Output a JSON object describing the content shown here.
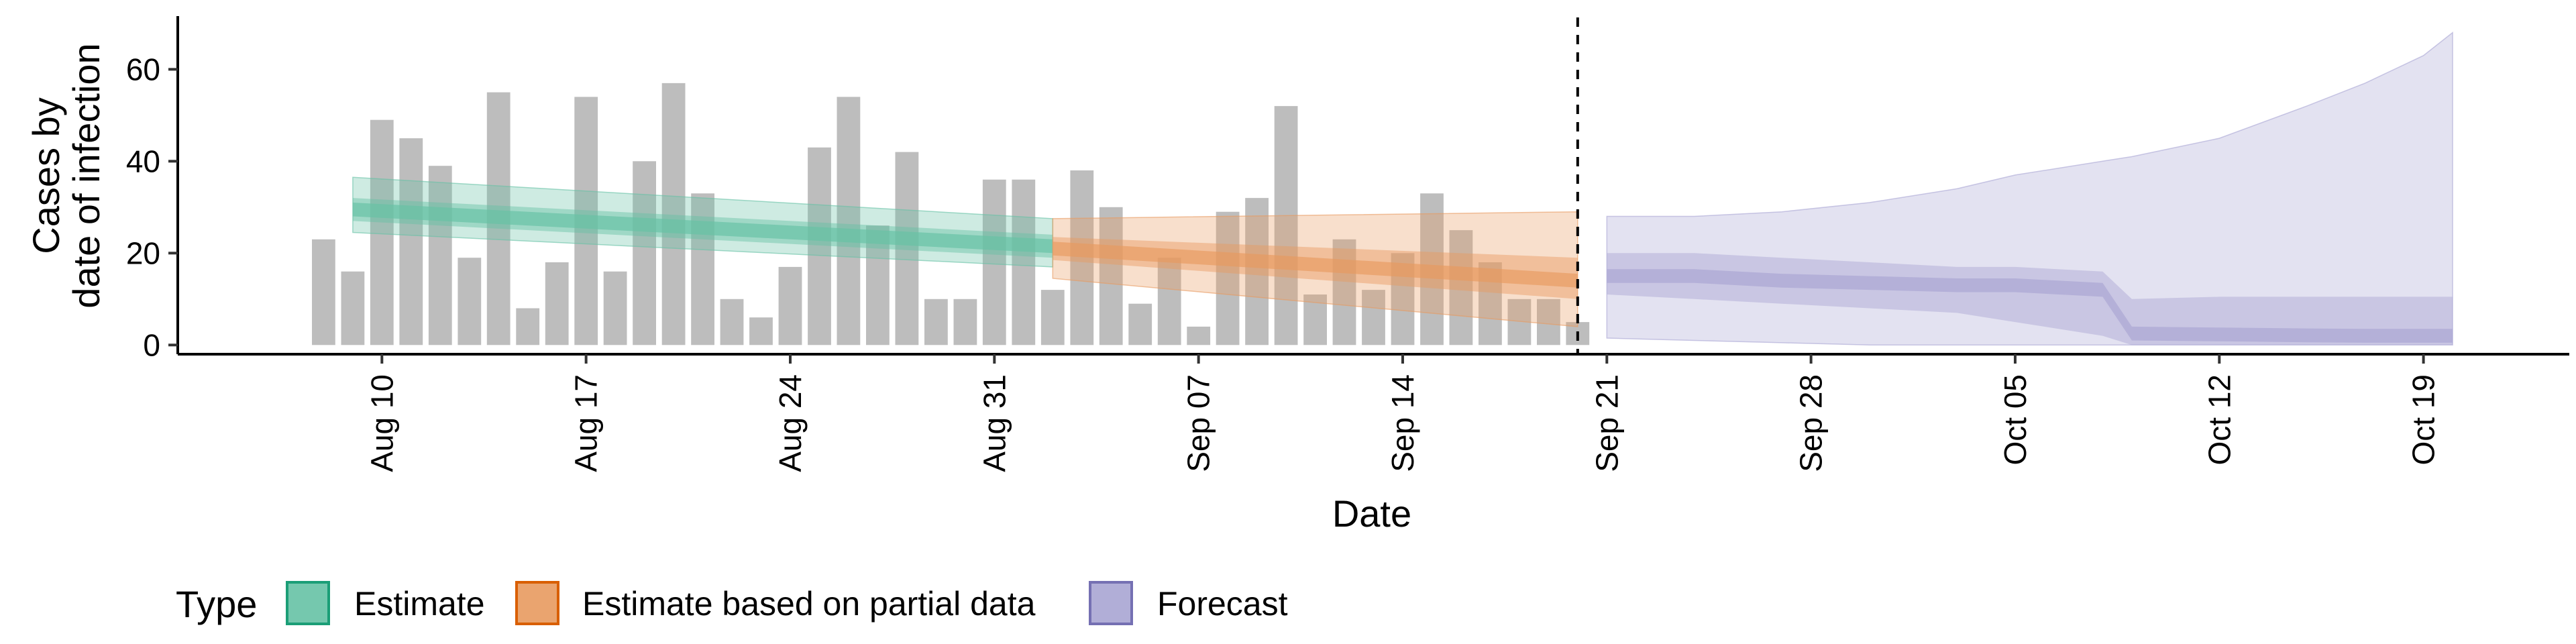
{
  "chart_data": {
    "type": "bar",
    "title": "",
    "xlabel": "Date",
    "ylabel": [
      "Cases by",
      "date of infection"
    ],
    "ylim": [
      -2,
      71
    ],
    "yticks": [
      0,
      20,
      40,
      60
    ],
    "xlim": [
      "2020-08-03",
      "2020-10-24"
    ],
    "xticks": [
      {
        "date": "2020-08-10",
        "label": "Aug 10"
      },
      {
        "date": "2020-08-17",
        "label": "Aug 17"
      },
      {
        "date": "2020-08-24",
        "label": "Aug 24"
      },
      {
        "date": "2020-08-31",
        "label": "Aug 31"
      },
      {
        "date": "2020-09-07",
        "label": "Sep 07"
      },
      {
        "date": "2020-09-14",
        "label": "Sep 14"
      },
      {
        "date": "2020-09-21",
        "label": "Sep 21"
      },
      {
        "date": "2020-09-28",
        "label": "Sep 28"
      },
      {
        "date": "2020-10-05",
        "label": "Oct 05"
      },
      {
        "date": "2020-10-12",
        "label": "Oct 12"
      },
      {
        "date": "2020-10-19",
        "label": "Oct 19"
      }
    ],
    "grid": false,
    "legend_position": "bottom-left",
    "forecast_start_line": "2020-09-20",
    "observed_cases": {
      "color": "#bdbdbd",
      "dates": [
        "2020-08-08",
        "2020-08-09",
        "2020-08-10",
        "2020-08-11",
        "2020-08-12",
        "2020-08-13",
        "2020-08-14",
        "2020-08-15",
        "2020-08-16",
        "2020-08-17",
        "2020-08-18",
        "2020-08-19",
        "2020-08-20",
        "2020-08-21",
        "2020-08-22",
        "2020-08-23",
        "2020-08-24",
        "2020-08-25",
        "2020-08-26",
        "2020-08-27",
        "2020-08-28",
        "2020-08-29",
        "2020-08-30",
        "2020-08-31",
        "2020-09-01",
        "2020-09-02",
        "2020-09-03",
        "2020-09-04",
        "2020-09-05",
        "2020-09-06",
        "2020-09-07",
        "2020-09-08",
        "2020-09-09",
        "2020-09-10",
        "2020-09-11",
        "2020-09-12",
        "2020-09-13",
        "2020-09-14",
        "2020-09-15",
        "2020-09-16",
        "2020-09-17",
        "2020-09-18",
        "2020-09-19",
        "2020-09-20"
      ],
      "values": [
        23,
        16,
        49,
        45,
        39,
        19,
        55,
        8,
        18,
        54,
        16,
        40,
        57,
        33,
        10,
        6,
        17,
        43,
        54,
        26,
        42,
        10,
        10,
        36,
        36,
        12,
        38,
        30,
        9,
        19,
        4,
        29,
        32,
        52,
        11,
        23,
        12,
        20,
        33,
        25,
        18,
        10,
        10,
        5
      ]
    },
    "legend_title": "Type",
    "series": [
      {
        "name": "Estimate",
        "color": "#1b9e77",
        "fill": "#66c2a5",
        "dates": [
          "2020-08-09",
          "2020-09-02"
        ],
        "median": [
          29.5,
          21.5
        ],
        "inner_lower": [
          27,
          19
        ],
        "inner_upper": [
          32,
          24
        ],
        "outer_lower": [
          24.5,
          17
        ],
        "outer_upper": [
          36.5,
          27.5
        ]
      },
      {
        "name": "Estimate based on partial data",
        "color": "#d95f02",
        "fill": "#e89a5f",
        "dates": [
          "2020-09-02",
          "2020-09-20"
        ],
        "median": [
          21,
          14
        ],
        "inner_lower": [
          18.5,
          10
        ],
        "inner_upper": [
          23.5,
          19
        ],
        "outer_lower": [
          14.5,
          4
        ],
        "outer_upper": [
          27.5,
          29
        ]
      },
      {
        "name": "Forecast",
        "color": "#7570b3",
        "fill": "#a9a5d3",
        "dates": [
          "2020-09-21",
          "2020-09-24",
          "2020-09-27",
          "2020-09-30",
          "2020-10-03",
          "2020-10-05",
          "2020-10-08",
          "2020-10-09",
          "2020-10-12",
          "2020-10-15",
          "2020-10-17",
          "2020-10-19",
          "2020-10-20"
        ],
        "median": [
          15,
          15,
          14,
          13.5,
          13,
          13,
          12,
          2.5,
          2.3,
          2.1,
          2,
          2,
          2
        ],
        "inner_lower": [
          11,
          10,
          9,
          8,
          7,
          5,
          2,
          0,
          0,
          0,
          0,
          0,
          0
        ],
        "inner_upper": [
          20,
          20,
          19,
          18,
          17,
          17,
          16,
          10,
          10.5,
          10.5,
          10.5,
          10.5,
          10.5
        ],
        "outer_lower": [
          1.5,
          1,
          0.5,
          0,
          0,
          0,
          0,
          0,
          0,
          0,
          0,
          0,
          0
        ],
        "outer_upper": [
          28,
          28,
          29,
          31,
          34,
          37,
          40,
          41,
          45,
          52,
          57,
          63,
          68
        ]
      }
    ]
  }
}
